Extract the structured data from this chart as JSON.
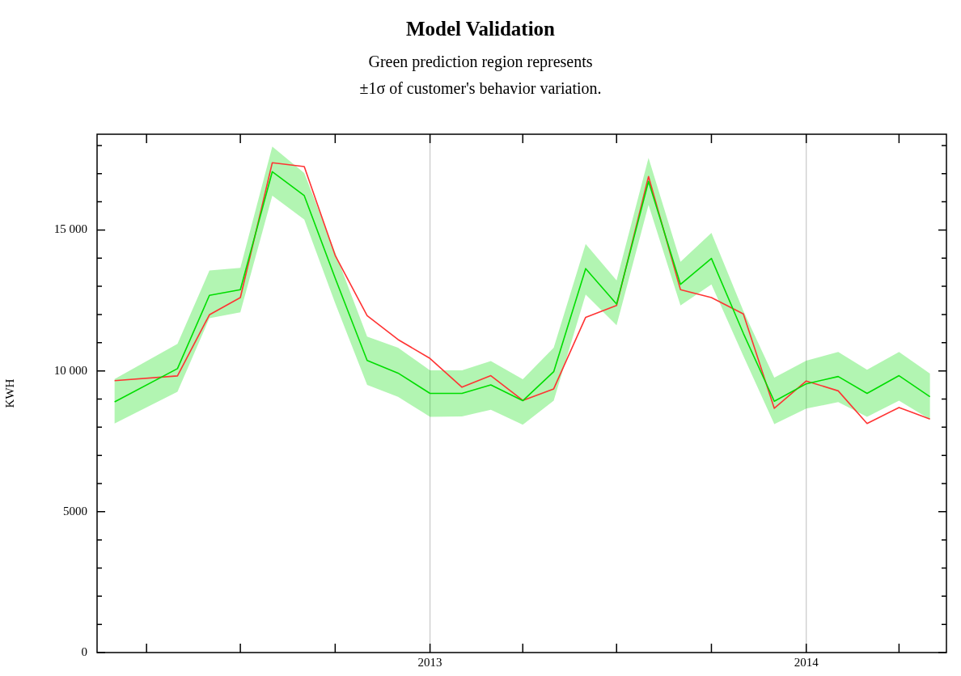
{
  "chart_data": {
    "type": "line",
    "title": "Model Validation",
    "subtitle": "Green prediction region represents\n±1σ of customer's behavior variation.",
    "ylabel": "KWH",
    "x": [
      "2012-03",
      "2012-05",
      "2012-06",
      "2012-07",
      "2012-08",
      "2012-09",
      "2012-10",
      "2012-11",
      "2012-12",
      "2013-01",
      "2013-02",
      "2013-03",
      "2013-04",
      "2013-05",
      "2013-06",
      "2013-07",
      "2013-08",
      "2013-09",
      "2013-10",
      "2013-11",
      "2013-12",
      "2014-01",
      "2014-02",
      "2014-03",
      "2014-04",
      "2014-05"
    ],
    "series": [
      {
        "color": "#00dd00",
        "values": [
          8900,
          10080,
          12680,
          12880,
          17070,
          16220,
          13290,
          10370,
          9920,
          9200,
          9200,
          9500,
          8940,
          9970,
          13630,
          12370,
          16730,
          13070,
          13990,
          11330,
          8920,
          9540,
          9800,
          9200,
          9830,
          9080
        ],
        "lower": [
          8130,
          9260,
          11870,
          12080,
          16220,
          15370,
          12400,
          9500,
          9080,
          8370,
          8380,
          8620,
          8090,
          8940,
          12710,
          11620,
          15890,
          12320,
          13070,
          10530,
          8110,
          8660,
          8890,
          8370,
          8940,
          8280
        ],
        "upper": [
          9710,
          10960,
          13560,
          13660,
          17960,
          17020,
          14200,
          11220,
          10820,
          10020,
          10020,
          10350,
          9700,
          10820,
          14500,
          13210,
          17560,
          13870,
          14900,
          12130,
          9760,
          10360,
          10670,
          10040,
          10670,
          9900
        ]
      },
      {
        "color": "#ff3333",
        "values": [
          9650,
          9820,
          11990,
          12600,
          17390,
          17250,
          14100,
          11960,
          11110,
          10440,
          9420,
          9830,
          8950,
          9360,
          11900,
          12320,
          16900,
          12880,
          12600,
          12020,
          8670,
          9640,
          9290,
          8130,
          8700,
          8290
        ]
      }
    ],
    "xlim": [
      "2012-02-13",
      "2014-05-17"
    ],
    "xticks": [
      {
        "value": "2012-04",
        "label": null
      },
      {
        "value": "2012-07",
        "label": null
      },
      {
        "value": "2012-10",
        "label": null
      },
      "2013",
      {
        "value": "2013-04",
        "label": null
      },
      {
        "value": "2013-07",
        "label": null
      },
      {
        "value": "2013-10",
        "label": null
      },
      "2014",
      {
        "value": "2014-04",
        "label": null
      }
    ],
    "ylim": [
      0,
      18400
    ],
    "yticks": [
      0,
      {
        "value": 1000,
        "label": null
      },
      {
        "value": 2000,
        "label": null
      },
      {
        "value": 3000,
        "label": null
      },
      {
        "value": 4000,
        "label": null
      },
      5000,
      {
        "value": 6000,
        "label": null
      },
      {
        "value": 7000,
        "label": null
      },
      {
        "value": 8000,
        "label": null
      },
      {
        "value": 9000,
        "label": null
      },
      {
        "value": 10000,
        "label": "10 000"
      },
      {
        "value": 11000,
        "label": null
      },
      {
        "value": 12000,
        "label": null
      },
      {
        "value": 13000,
        "label": null
      },
      {
        "value": 14000,
        "label": null
      },
      {
        "value": 15000,
        "label": "15 000"
      },
      {
        "value": 16000,
        "label": null
      },
      {
        "value": 17000,
        "label": null
      },
      {
        "value": 18000,
        "label": null
      }
    ],
    "ref_lines": [
      {
        "axis": "x",
        "value": "2013",
        "color": "#c8c8c8"
      },
      {
        "axis": "x",
        "value": "2014",
        "color": "#c8c8c8"
      }
    ],
    "marker": "none",
    "line_style": "solid",
    "legend": false,
    "grid": false
  }
}
